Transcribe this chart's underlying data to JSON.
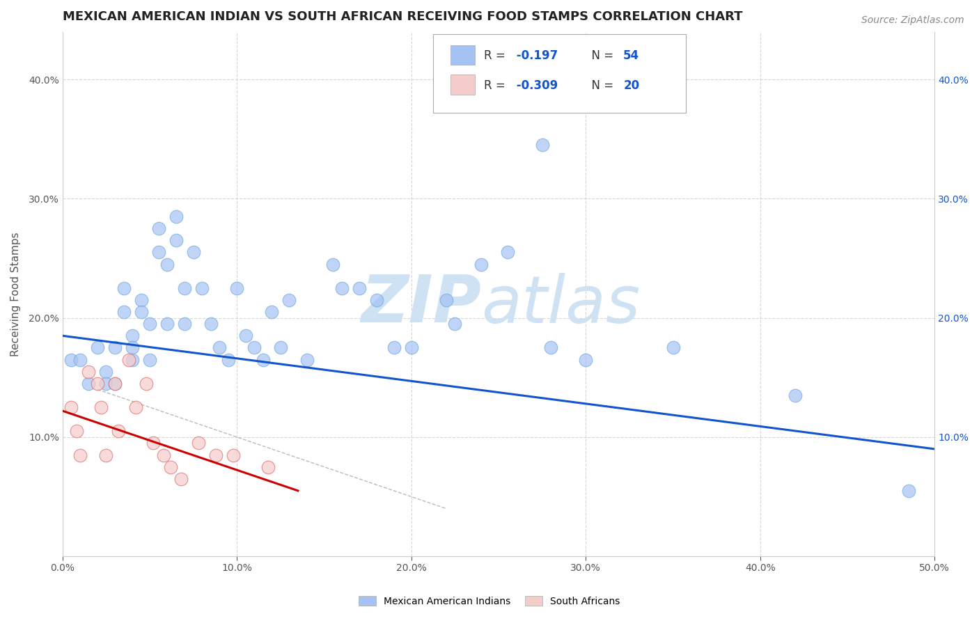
{
  "title": "MEXICAN AMERICAN INDIAN VS SOUTH AFRICAN RECEIVING FOOD STAMPS CORRELATION CHART",
  "source": "Source: ZipAtlas.com",
  "ylabel": "Receiving Food Stamps",
  "xlim": [
    0.0,
    0.5
  ],
  "ylim": [
    0.0,
    0.44
  ],
  "xticks": [
    0.0,
    0.1,
    0.2,
    0.3,
    0.4,
    0.5
  ],
  "yticks": [
    0.0,
    0.1,
    0.2,
    0.3,
    0.4
  ],
  "xticklabels": [
    "0.0%",
    "10.0%",
    "20.0%",
    "30.0%",
    "40.0%",
    "50.0%"
  ],
  "yticklabels": [
    "",
    "10.0%",
    "20.0%",
    "30.0%",
    "40.0%"
  ],
  "right_yticklabels": [
    "",
    "10.0%",
    "20.0%",
    "30.0%",
    "40.0%"
  ],
  "blue_R": "-0.197",
  "blue_N": "54",
  "pink_R": "-0.309",
  "pink_N": "20",
  "blue_color": "#a4c2f4",
  "pink_color": "#f4cccc",
  "blue_scatter_edge": "#6fa8dc",
  "pink_scatter_edge": "#e06666",
  "blue_line_color": "#1155cc",
  "pink_line_color": "#cc0000",
  "legend_label_blue": "Mexican American Indians",
  "legend_label_pink": "South Africans",
  "blue_scatter_x": [
    0.005,
    0.01,
    0.015,
    0.02,
    0.025,
    0.025,
    0.03,
    0.03,
    0.035,
    0.035,
    0.04,
    0.04,
    0.04,
    0.045,
    0.045,
    0.05,
    0.05,
    0.055,
    0.055,
    0.06,
    0.06,
    0.065,
    0.065,
    0.07,
    0.07,
    0.075,
    0.08,
    0.085,
    0.09,
    0.095,
    0.1,
    0.105,
    0.11,
    0.115,
    0.12,
    0.125,
    0.13,
    0.14,
    0.155,
    0.16,
    0.17,
    0.18,
    0.19,
    0.2,
    0.22,
    0.225,
    0.24,
    0.255,
    0.275,
    0.28,
    0.3,
    0.35,
    0.42,
    0.485
  ],
  "blue_scatter_y": [
    0.165,
    0.165,
    0.145,
    0.175,
    0.155,
    0.145,
    0.175,
    0.145,
    0.225,
    0.205,
    0.185,
    0.175,
    0.165,
    0.215,
    0.205,
    0.195,
    0.165,
    0.275,
    0.255,
    0.245,
    0.195,
    0.285,
    0.265,
    0.225,
    0.195,
    0.255,
    0.225,
    0.195,
    0.175,
    0.165,
    0.225,
    0.185,
    0.175,
    0.165,
    0.205,
    0.175,
    0.215,
    0.165,
    0.245,
    0.225,
    0.225,
    0.215,
    0.175,
    0.175,
    0.215,
    0.195,
    0.245,
    0.255,
    0.345,
    0.175,
    0.165,
    0.175,
    0.135,
    0.055
  ],
  "pink_scatter_x": [
    0.005,
    0.008,
    0.01,
    0.015,
    0.02,
    0.022,
    0.025,
    0.03,
    0.032,
    0.038,
    0.042,
    0.048,
    0.052,
    0.058,
    0.062,
    0.068,
    0.078,
    0.088,
    0.098,
    0.118
  ],
  "pink_scatter_y": [
    0.125,
    0.105,
    0.085,
    0.155,
    0.145,
    0.125,
    0.085,
    0.145,
    0.105,
    0.165,
    0.125,
    0.145,
    0.095,
    0.085,
    0.075,
    0.065,
    0.095,
    0.085,
    0.085,
    0.075
  ],
  "blue_line_x": [
    0.0,
    0.5
  ],
  "blue_line_y": [
    0.185,
    0.09
  ],
  "pink_line_x": [
    0.0,
    0.135
  ],
  "pink_line_y": [
    0.122,
    0.055
  ],
  "dash_line_x": [
    0.02,
    0.22
  ],
  "dash_line_y": [
    0.14,
    0.04
  ],
  "background_color": "#ffffff",
  "grid_color": "#cccccc",
  "title_fontsize": 13,
  "axis_label_fontsize": 11,
  "tick_fontsize": 10,
  "legend_fontsize": 12,
  "source_fontsize": 10,
  "rn_color": "#1155cc",
  "label_color": "#555555"
}
